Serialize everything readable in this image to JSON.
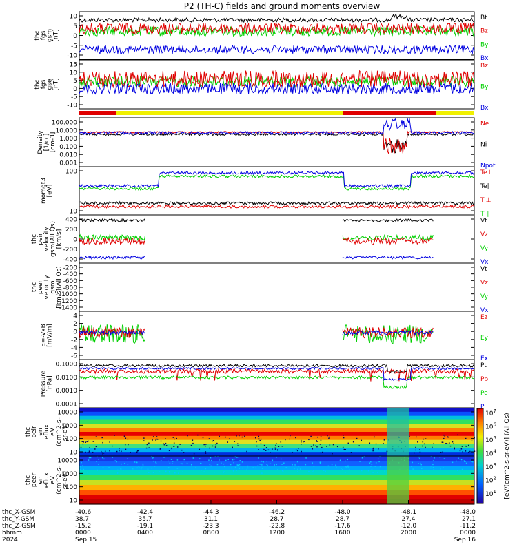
{
  "chart_data": {
    "title": "P2 (TH-C) fields and ground moments overview",
    "type": "multi-panel",
    "colors": {
      "black": "#000000",
      "red": "#e00000",
      "green": "#00d000",
      "blue": "#0000e0",
      "yellow": "#f0f000"
    },
    "panels": [
      {
        "id": "fgs-gsm",
        "ylabel": [
          "thc",
          "fgs",
          "gsm",
          "[nT]"
        ],
        "yticks": [
          "10",
          "5",
          "0",
          "-5",
          "-10"
        ],
        "ylim": [
          -13,
          15
        ],
        "legend": [
          {
            "label": "Bt",
            "color": "black"
          },
          {
            "label": "Bz",
            "color": "red"
          },
          {
            "label": "By",
            "color": "green"
          },
          {
            "label": "Bx",
            "color": "blue"
          }
        ]
      },
      {
        "id": "fgs-gse",
        "ylabel": [
          "thc",
          "fgs",
          "gse",
          "[nT]"
        ],
        "yticks": [
          "15",
          "10",
          "5",
          "0",
          "-5",
          "-10"
        ],
        "ylim": [
          -14,
          17
        ],
        "legend": [
          {
            "label": "Bz",
            "color": "red"
          },
          {
            "label": "By",
            "color": "green"
          },
          {
            "label": "Bx",
            "color": "blue"
          }
        ]
      },
      {
        "id": "density",
        "ylabel": [
          "Density",
          "[1/cc]",
          "[cm-3]"
        ],
        "yticks": [
          "100.000",
          "10.000",
          "1.000",
          "0.100",
          "0.010",
          "0.001"
        ],
        "scale": "log",
        "legend": [
          {
            "label": "Ne",
            "color": "red"
          },
          {
            "label": "Ni",
            "color": "black"
          },
          {
            "label": "Npot",
            "color": "blue"
          }
        ]
      },
      {
        "id": "temperature",
        "ylabel": [
          "momgt3",
          "[eV]"
        ],
        "yticks": [
          "100",
          "10"
        ],
        "scale": "log",
        "legend": [
          {
            "label": "Te⊥",
            "color": "red"
          },
          {
            "label": "Te∥",
            "color": "black"
          },
          {
            "label": "Ti⊥",
            "color": "red"
          },
          {
            "label": "Ti∥",
            "color": "green"
          }
        ]
      },
      {
        "id": "peir-velocity",
        "ylabel": [
          "thc",
          "peir",
          "velocity",
          "gsm(All Qs)",
          "[km/s]"
        ],
        "yticks": [
          "400",
          "200",
          "0",
          "-200",
          "-400"
        ],
        "ylim": [
          -450,
          470
        ],
        "legend": [
          {
            "label": "Vt",
            "color": "black"
          },
          {
            "label": "Vz",
            "color": "red"
          },
          {
            "label": "Vy",
            "color": "green"
          },
          {
            "label": "Vx",
            "color": "blue"
          }
        ]
      },
      {
        "id": "peer-velocity",
        "ylabel": [
          "thc",
          "peer",
          "velocity",
          "gsm",
          "[km/s](All Qs)"
        ],
        "yticks": [
          "-200",
          "-400",
          "-600",
          "-800",
          "-1000",
          "-1200",
          "-1400"
        ],
        "ylim": [
          -1500,
          -100
        ],
        "legend": [
          {
            "label": "Vt",
            "color": "black"
          },
          {
            "label": "Vz",
            "color": "red"
          },
          {
            "label": "Vy",
            "color": "green"
          },
          {
            "label": "Vx",
            "color": "blue"
          }
        ]
      },
      {
        "id": "efield",
        "ylabel": [
          "E=-VxB",
          "[mV/m]"
        ],
        "yticks": [
          "4",
          "2",
          "0",
          "-2",
          "-4",
          "-6"
        ],
        "ylim": [
          -7,
          4.5
        ],
        "legend": [
          {
            "label": "Ez",
            "color": "red"
          },
          {
            "label": "Ey",
            "color": "green"
          },
          {
            "label": "Ex",
            "color": "blue"
          }
        ]
      },
      {
        "id": "pressure",
        "ylabel": [
          "Pressure",
          "[nPa]"
        ],
        "yticks": [
          "0.1000",
          "0.0100",
          "0.0010",
          "0.0001"
        ],
        "scale": "log",
        "legend": [
          {
            "label": "Pt",
            "color": "black"
          },
          {
            "label": "Pb",
            "color": "red"
          },
          {
            "label": "Pe",
            "color": "green"
          },
          {
            "label": "Pi",
            "color": "blue"
          }
        ]
      },
      {
        "id": "peir-spec",
        "ylabel": [
          "thc",
          "peir",
          "en",
          "eflux",
          "eV",
          "(cm^2-s-",
          "sr-eV)"
        ],
        "yticks": [
          "10000",
          "1000",
          "100",
          "10"
        ],
        "scale": "log"
      },
      {
        "id": "peer-spec",
        "ylabel": [
          "thc",
          "peer",
          "en",
          "eflux",
          "eV",
          "(cm^2-s-",
          "sr-eV)"
        ],
        "yticks": [
          "10000",
          "1000",
          "100",
          "10"
        ],
        "scale": "log"
      }
    ],
    "region_bar": [
      {
        "from": "0000",
        "to": "0215",
        "color": "red"
      },
      {
        "from": "0215",
        "to": "1600",
        "color": "yellow"
      },
      {
        "from": "1600",
        "to": "2140",
        "color": "red"
      },
      {
        "from": "2140",
        "to": "2400",
        "color": "yellow"
      }
    ],
    "colorbar": {
      "labels": [
        "10^7",
        "10^6",
        "10^5",
        "10^4",
        "10^3",
        "10^2",
        "10^1"
      ],
      "title": "[eV/(cm^2-s-sr-eV)] (All Qs)"
    },
    "x_axis": {
      "row_labels": [
        "thc_X-GSM",
        "thc_Y-GSM",
        "thc_Z-GSM",
        "hhmm",
        "2024"
      ],
      "ticks": [
        {
          "hhmm": "0000",
          "x": "-40.6",
          "y": "38.7",
          "z": "-15.2",
          "date": "Sep 15"
        },
        {
          "hhmm": "0400",
          "x": "-42.4",
          "y": "35.7",
          "z": "-19.1",
          "date": ""
        },
        {
          "hhmm": "0800",
          "x": "-44.3",
          "y": "31.1",
          "z": "-23.3",
          "date": ""
        },
        {
          "hhmm": "1200",
          "x": "-46.2",
          "y": "28.7",
          "z": "-22.8",
          "date": ""
        },
        {
          "hhmm": "1600",
          "x": "-48.0",
          "y": "28.7",
          "z": "-17.6",
          "date": ""
        },
        {
          "hhmm": "2000",
          "x": "-48.1",
          "y": "27.4",
          "z": "-12.0",
          "date": ""
        },
        {
          "hhmm": "0000",
          "x": "-48.0",
          "y": "27.1",
          "z": "-11.2",
          "date": "Sep 16"
        }
      ]
    }
  }
}
